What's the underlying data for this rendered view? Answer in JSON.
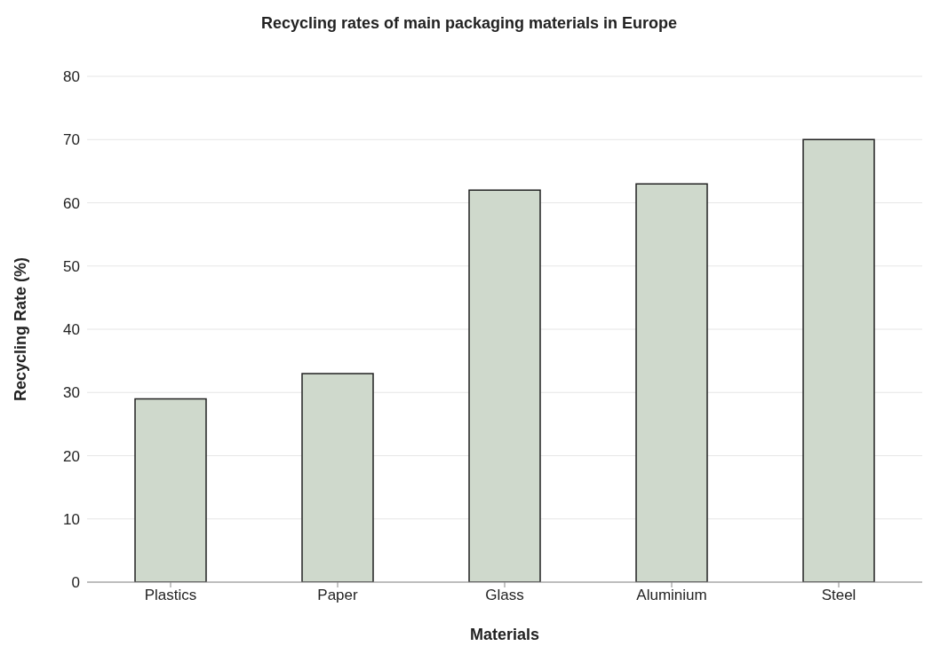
{
  "chart_data": {
    "type": "bar",
    "title": "Recycling rates of main packaging materials in Europe",
    "xlabel": "Materials",
    "ylabel": "Recycling Rate (%)",
    "categories": [
      "Plastics",
      "Paper",
      "Glass",
      "Aluminium",
      "Steel"
    ],
    "values": [
      29,
      33,
      62,
      63,
      70
    ],
    "color": "#cfd9cc",
    "ylim": [
      0,
      80
    ],
    "yticks": [
      0,
      10,
      20,
      30,
      40,
      50,
      60,
      70,
      80
    ],
    "grid": "y"
  }
}
